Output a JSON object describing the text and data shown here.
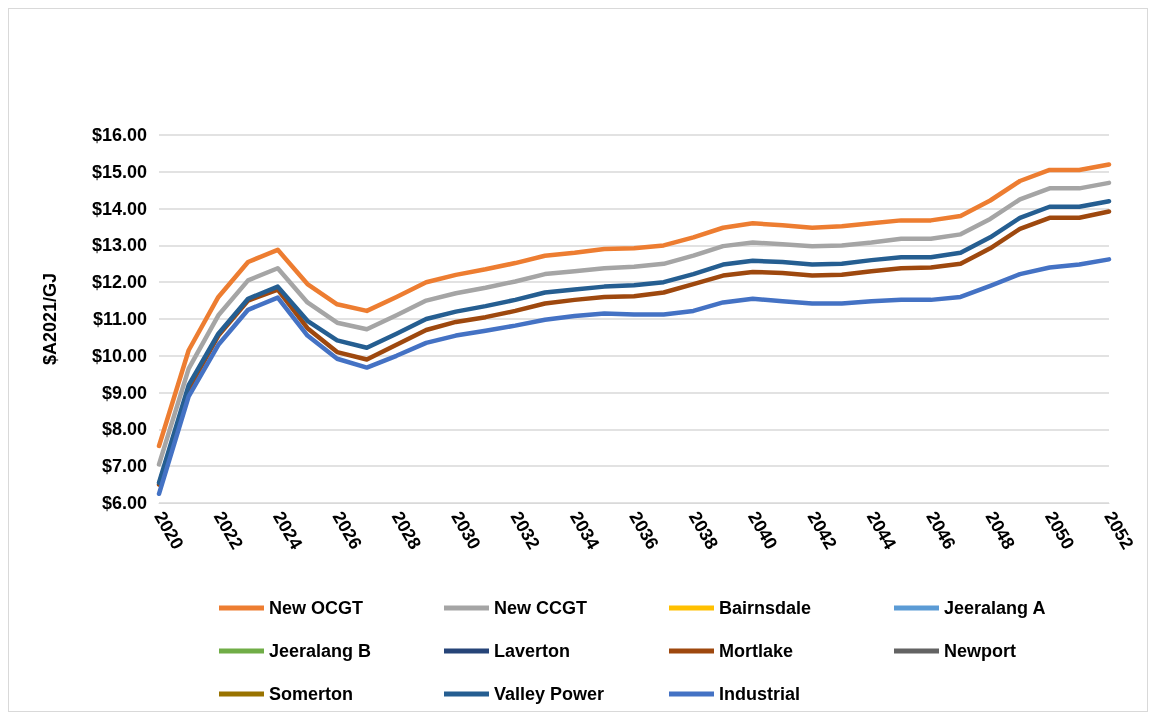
{
  "chart_data": {
    "type": "line",
    "ylabel": "$A2021/GJ",
    "x": [
      2020,
      2021,
      2022,
      2023,
      2024,
      2025,
      2026,
      2027,
      2028,
      2029,
      2030,
      2031,
      2032,
      2033,
      2034,
      2035,
      2036,
      2037,
      2038,
      2039,
      2040,
      2041,
      2042,
      2043,
      2044,
      2045,
      2046,
      2047,
      2048,
      2049,
      2050,
      2051,
      2052
    ],
    "xlim": [
      2020,
      2052
    ],
    "xticks": [
      2020,
      2022,
      2024,
      2026,
      2028,
      2030,
      2032,
      2034,
      2036,
      2038,
      2040,
      2042,
      2044,
      2046,
      2048,
      2050,
      2052
    ],
    "ylim": [
      6,
      16
    ],
    "yticks": [
      {
        "value": 6,
        "label": "$6.00"
      },
      {
        "value": 7,
        "label": "$7.00"
      },
      {
        "value": 8,
        "label": "$8.00"
      },
      {
        "value": 9,
        "label": "$9.00"
      },
      {
        "value": 10,
        "label": "$10.00"
      },
      {
        "value": 11,
        "label": "$11.00"
      },
      {
        "value": 12,
        "label": "$12.00"
      },
      {
        "value": 13,
        "label": "$13.00"
      },
      {
        "value": 14,
        "label": "$14.00"
      },
      {
        "value": 15,
        "label": "$15.00"
      },
      {
        "value": 16,
        "label": "$16.00"
      }
    ],
    "grid": "y",
    "legend": "bottom",
    "marker": "none",
    "line_style": "solid",
    "series": [
      {
        "name": "New OCGT",
        "color": "#ed7d31",
        "values": [
          7.55,
          10.15,
          11.6,
          12.55,
          12.88,
          11.95,
          11.4,
          11.22,
          11.6,
          12.0,
          12.2,
          12.35,
          12.52,
          12.72,
          12.8,
          12.9,
          12.92,
          13.0,
          13.22,
          13.48,
          13.6,
          13.55,
          13.48,
          13.52,
          13.6,
          13.68,
          13.68,
          13.8,
          14.22,
          14.75,
          15.05,
          15.05,
          15.2
        ]
      },
      {
        "name": "New CCGT",
        "color": "#a5a5a5",
        "values": [
          7.05,
          9.65,
          11.1,
          12.05,
          12.38,
          11.45,
          10.9,
          10.72,
          11.1,
          11.5,
          11.7,
          11.85,
          12.02,
          12.22,
          12.3,
          12.38,
          12.42,
          12.5,
          12.72,
          12.98,
          13.08,
          13.03,
          12.98,
          13.0,
          13.08,
          13.18,
          13.18,
          13.3,
          13.72,
          14.25,
          14.55,
          14.55,
          14.7
        ]
      },
      {
        "name": "Bairnsdale",
        "color": "#ffc000",
        "values": [
          null,
          null,
          null,
          null,
          null,
          null,
          null,
          null,
          null,
          null,
          null,
          null,
          null,
          null,
          null,
          null,
          null,
          null,
          null,
          null,
          null,
          null,
          null,
          null,
          null,
          null,
          null,
          null,
          null,
          null,
          null,
          null,
          null
        ]
      },
      {
        "name": "Jeeralang A",
        "color": "#5b9bd5",
        "values": [
          null,
          null,
          null,
          null,
          null,
          null,
          null,
          null,
          null,
          null,
          null,
          null,
          null,
          null,
          null,
          null,
          null,
          null,
          null,
          null,
          null,
          null,
          null,
          null,
          null,
          null,
          null,
          null,
          null,
          null,
          null,
          null,
          null
        ]
      },
      {
        "name": "Jeeralang B",
        "color": "#70ad47",
        "values": [
          null,
          null,
          null,
          null,
          null,
          null,
          null,
          null,
          null,
          null,
          null,
          null,
          null,
          null,
          null,
          null,
          null,
          null,
          null,
          null,
          null,
          null,
          null,
          null,
          null,
          null,
          null,
          null,
          null,
          null,
          null,
          null,
          null
        ]
      },
      {
        "name": "Laverton",
        "color": "#264478",
        "values": [
          null,
          null,
          null,
          null,
          null,
          null,
          null,
          null,
          null,
          null,
          null,
          null,
          null,
          null,
          null,
          null,
          null,
          null,
          null,
          null,
          null,
          null,
          null,
          null,
          null,
          null,
          null,
          null,
          null,
          null,
          null,
          null,
          null
        ]
      },
      {
        "name": "Mortlake",
        "color": "#9e480e",
        "values": [
          6.5,
          9.1,
          10.55,
          11.5,
          11.8,
          10.75,
          10.1,
          9.9,
          10.3,
          10.7,
          10.92,
          11.05,
          11.22,
          11.42,
          11.52,
          11.6,
          11.62,
          11.72,
          11.95,
          12.18,
          12.28,
          12.25,
          12.18,
          12.2,
          12.3,
          12.38,
          12.4,
          12.5,
          12.92,
          13.45,
          13.75,
          13.75,
          13.92
        ]
      },
      {
        "name": "Newport",
        "color": "#636363",
        "values": [
          null,
          null,
          null,
          null,
          null,
          null,
          null,
          null,
          null,
          null,
          null,
          null,
          null,
          null,
          null,
          null,
          null,
          null,
          null,
          null,
          null,
          null,
          null,
          null,
          null,
          null,
          null,
          null,
          null,
          null,
          null,
          null,
          null
        ]
      },
      {
        "name": "Somerton",
        "color": "#997300",
        "values": [
          null,
          null,
          null,
          null,
          null,
          null,
          null,
          null,
          null,
          null,
          null,
          null,
          null,
          null,
          null,
          null,
          null,
          null,
          null,
          null,
          null,
          null,
          null,
          null,
          null,
          null,
          null,
          null,
          null,
          null,
          null,
          null,
          null
        ]
      },
      {
        "name": "Valley Power",
        "color": "#255e91",
        "values": [
          6.55,
          9.2,
          10.6,
          11.55,
          11.88,
          10.95,
          10.42,
          10.22,
          10.6,
          11.0,
          11.2,
          11.35,
          11.52,
          11.72,
          11.8,
          11.88,
          11.92,
          12.0,
          12.22,
          12.48,
          12.58,
          12.55,
          12.48,
          12.5,
          12.6,
          12.68,
          12.68,
          12.8,
          13.22,
          13.75,
          14.05,
          14.05,
          14.2
        ]
      },
      {
        "name": "Industrial",
        "color": "#4472c4",
        "values": [
          6.25,
          8.9,
          10.3,
          11.25,
          11.58,
          10.55,
          9.92,
          9.68,
          10.0,
          10.35,
          10.55,
          10.68,
          10.82,
          10.98,
          11.08,
          11.15,
          11.12,
          11.12,
          11.22,
          11.45,
          11.55,
          11.48,
          11.42,
          11.42,
          11.48,
          11.52,
          11.52,
          11.6,
          11.9,
          12.22,
          12.4,
          12.48,
          12.62
        ]
      }
    ]
  }
}
